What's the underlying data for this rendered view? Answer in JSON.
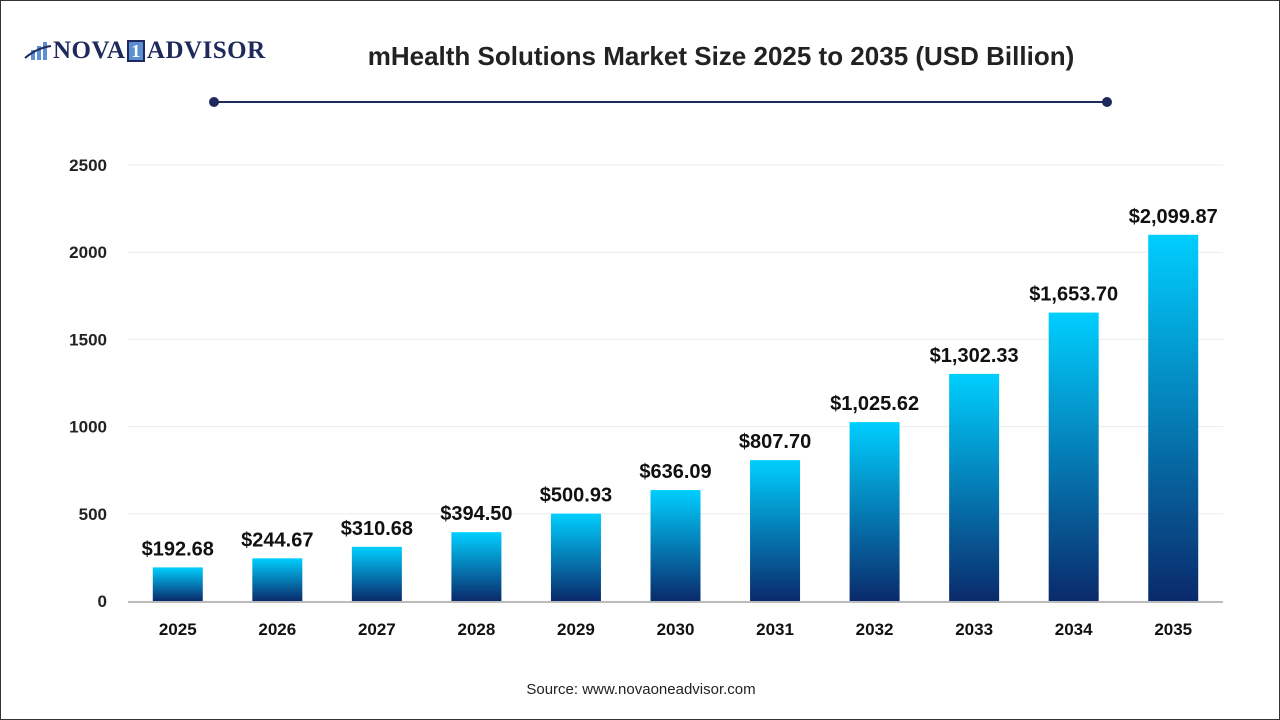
{
  "logo": {
    "text_left": "NOVA",
    "text_one": "1",
    "text_right": "ADVISOR"
  },
  "title": "mHealth Solutions Market Size 2025 to 2035 (USD Billion)",
  "source": "Source: www.novaoneadvisor.com",
  "colors": {
    "bar_top": "#00cfff",
    "bar_bottom": "#0a2a6b",
    "accent": "#1f2a5c"
  },
  "chart_data": {
    "type": "bar",
    "title": "mHealth Solutions Market Size 2025 to 2035 (USD Billion)",
    "categories": [
      "2025",
      "2026",
      "2027",
      "2028",
      "2029",
      "2030",
      "2031",
      "2032",
      "2033",
      "2034",
      "2035"
    ],
    "values": [
      192.68,
      244.67,
      310.68,
      394.5,
      500.93,
      636.09,
      807.7,
      1025.62,
      1302.33,
      1653.7,
      2099.87
    ],
    "data_labels": [
      "$192.68",
      "$244.67",
      "$310.68",
      "$394.50",
      "$500.93",
      "$636.09",
      "$807.70",
      "$1,025.62",
      "$1,302.33",
      "$1,653.70",
      "$2,099.87"
    ],
    "yticks": [
      0,
      500,
      1000,
      1500,
      2000,
      2500
    ],
    "ylim": [
      0,
      2500
    ],
    "grid": true,
    "xlabel": "",
    "ylabel": ""
  }
}
